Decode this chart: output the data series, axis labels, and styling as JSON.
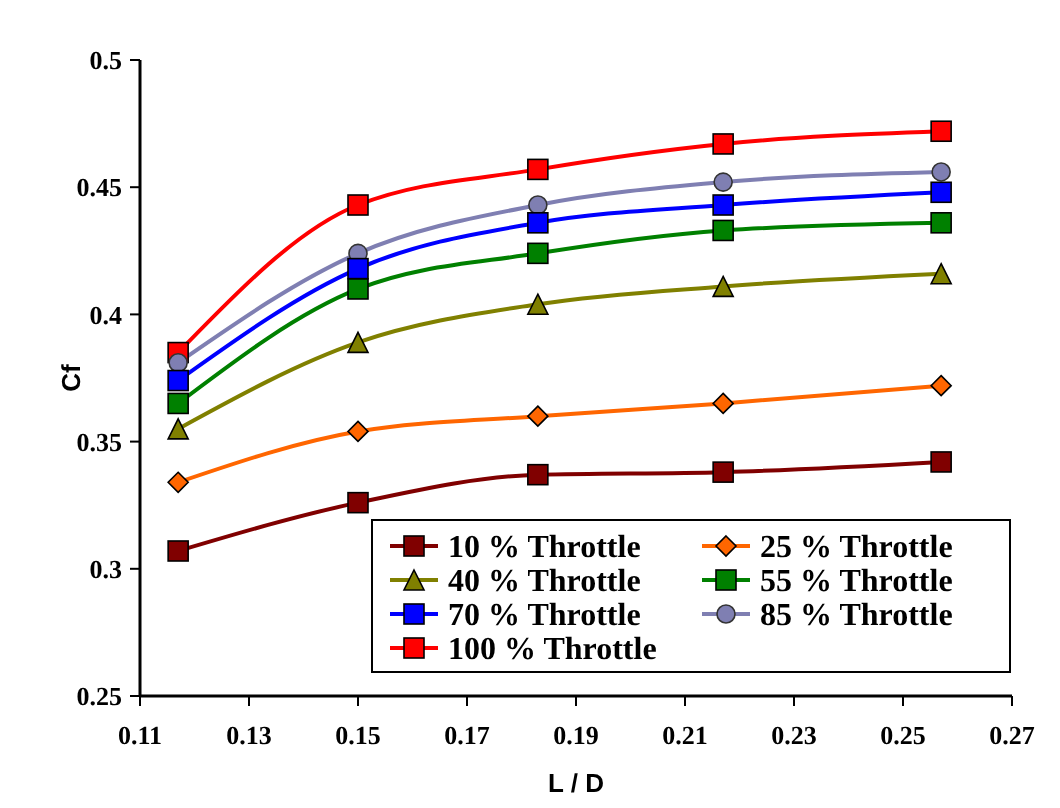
{
  "chart_data": {
    "type": "line",
    "xlabel": "L / D",
    "ylabel": "Cf",
    "x": [
      0.117,
      0.15,
      0.183,
      0.217,
      0.257
    ],
    "xlim": [
      0.11,
      0.27
    ],
    "xticks": [
      0.11,
      0.13,
      0.15,
      0.17,
      0.19,
      0.21,
      0.23,
      0.25,
      0.27
    ],
    "ylim": [
      0.25,
      0.5
    ],
    "yticks": [
      0.25,
      0.3,
      0.35,
      0.4,
      0.45,
      0.5
    ],
    "grid": false,
    "legend": "bottom right",
    "series": [
      {
        "name": "10 % Throttle",
        "color": "#800000",
        "marker": "square",
        "values": [
          0.307,
          0.326,
          0.337,
          0.338,
          0.342
        ]
      },
      {
        "name": "25 % Throttle",
        "color": "#ff6600",
        "marker": "diamond",
        "values": [
          0.334,
          0.354,
          0.36,
          0.365,
          0.372
        ]
      },
      {
        "name": "40 % Throttle",
        "color": "#808000",
        "marker": "triangle",
        "values": [
          0.355,
          0.389,
          0.404,
          0.411,
          0.416
        ]
      },
      {
        "name": "55 % Throttle",
        "color": "#008000",
        "marker": "square",
        "values": [
          0.365,
          0.41,
          0.424,
          0.433,
          0.436
        ]
      },
      {
        "name": "70 % Throttle",
        "color": "#0000ff",
        "marker": "square",
        "values": [
          0.374,
          0.418,
          0.436,
          0.443,
          0.448
        ]
      },
      {
        "name": "85 % Throttle",
        "color": "#7f7fb2",
        "marker": "circle",
        "values": [
          0.381,
          0.424,
          0.443,
          0.452,
          0.456
        ]
      },
      {
        "name": "100 % Throttle",
        "color": "#ff0000",
        "marker": "square",
        "values": [
          0.385,
          0.443,
          0.457,
          0.467,
          0.472
        ]
      }
    ]
  }
}
